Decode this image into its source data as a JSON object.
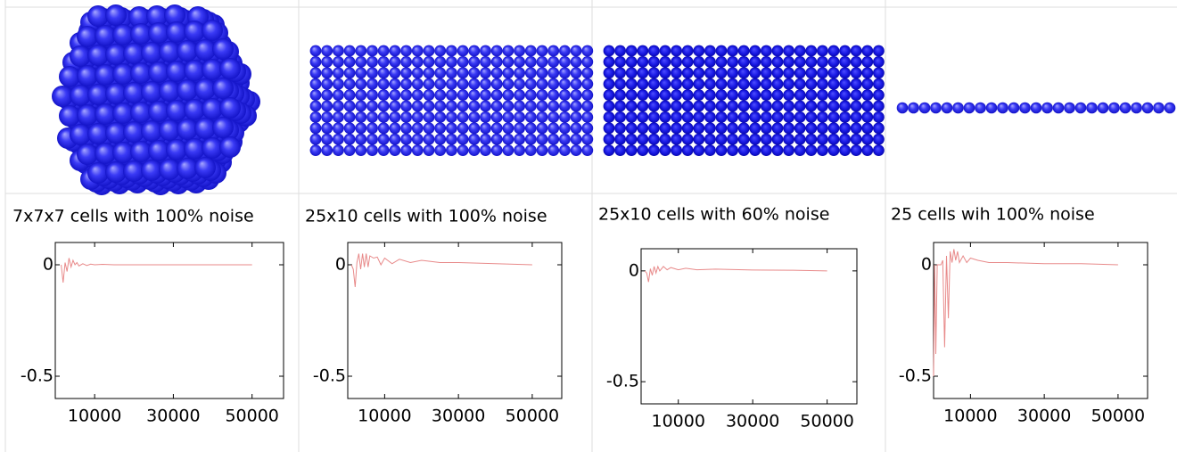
{
  "chart_data": [
    {
      "type": "line",
      "title": "7x7x7 cells with 100% noise",
      "color": "#e88a8a",
      "x": [
        1500,
        2000,
        2500,
        3000,
        3500,
        4000,
        4500,
        5000,
        5500,
        6000,
        7000,
        8000,
        9000,
        10000,
        12000,
        15000,
        20000,
        30000,
        40000,
        50000
      ],
      "values": [
        0,
        -0.08,
        0.01,
        -0.03,
        0.03,
        -0.01,
        0.02,
        0,
        0.01,
        -0.005,
        0.005,
        -0.003,
        0.003,
        0,
        0.002,
        0,
        0,
        0,
        0,
        0
      ],
      "xlim": [
        0,
        58000
      ],
      "ylim": [
        -0.6,
        0.1
      ],
      "xticks": [
        10000,
        30000,
        50000
      ],
      "yticks": [
        0,
        -0.5
      ]
    },
    {
      "type": "line",
      "title": "25x10 cells with 100% noise",
      "color": "#e88a8a",
      "x": [
        1000,
        1500,
        2000,
        2500,
        3000,
        3500,
        4000,
        4500,
        5000,
        5500,
        6000,
        7000,
        8000,
        9000,
        10000,
        12000,
        14000,
        17000,
        20000,
        25000,
        30000,
        40000,
        50000
      ],
      "values": [
        0,
        -0.02,
        -0.1,
        0.01,
        0.05,
        -0.02,
        0.05,
        -0.01,
        0.05,
        -0.01,
        0.04,
        0.03,
        0.035,
        0,
        0.03,
        0.005,
        0.025,
        0.01,
        0.02,
        0.01,
        0.01,
        0.005,
        0
      ],
      "xlim": [
        0,
        58000
      ],
      "ylim": [
        -0.6,
        0.1
      ],
      "xticks": [
        10000,
        30000,
        50000
      ],
      "yticks": [
        0,
        -0.5
      ]
    },
    {
      "type": "line",
      "title": "25x10 cells with 60% noise",
      "color": "#e88a8a",
      "x": [
        1000,
        1500,
        2000,
        2500,
        3000,
        3500,
        4000,
        4500,
        5000,
        6000,
        7000,
        8000,
        10000,
        12000,
        15000,
        20000,
        30000,
        40000,
        50000
      ],
      "values": [
        0,
        -0.01,
        -0.05,
        0.01,
        -0.02,
        0.02,
        -0.01,
        0.02,
        0,
        0.02,
        0.005,
        0.015,
        0.005,
        0.012,
        0.005,
        0.008,
        0.004,
        0.003,
        0
      ],
      "xlim": [
        0,
        58000
      ],
      "ylim": [
        -0.6,
        0.1
      ],
      "xticks": [
        10000,
        30000,
        50000
      ],
      "yticks": [
        0,
        -0.5
      ]
    },
    {
      "type": "line",
      "title": "25 cells wih 100% noise",
      "color": "#e88a8a",
      "x": [
        0,
        300,
        600,
        1000,
        1500,
        2000,
        2500,
        3000,
        3500,
        4000,
        4500,
        5000,
        5500,
        6000,
        6500,
        7000,
        8000,
        9000,
        10000,
        12000,
        15000,
        20000,
        30000,
        40000,
        50000
      ],
      "values": [
        -0.5,
        0,
        -0.4,
        0,
        0,
        0,
        0.02,
        -0.37,
        0.04,
        -0.24,
        0.06,
        0.01,
        0.07,
        0.02,
        0.06,
        0.01,
        0.04,
        0.01,
        0.03,
        0.02,
        0.01,
        0.01,
        0.005,
        0.005,
        0
      ],
      "xlim": [
        0,
        58000
      ],
      "ylim": [
        -0.6,
        0.1
      ],
      "xticks": [
        10000,
        30000,
        50000
      ],
      "yticks": [
        0,
        -0.5
      ]
    }
  ]
}
